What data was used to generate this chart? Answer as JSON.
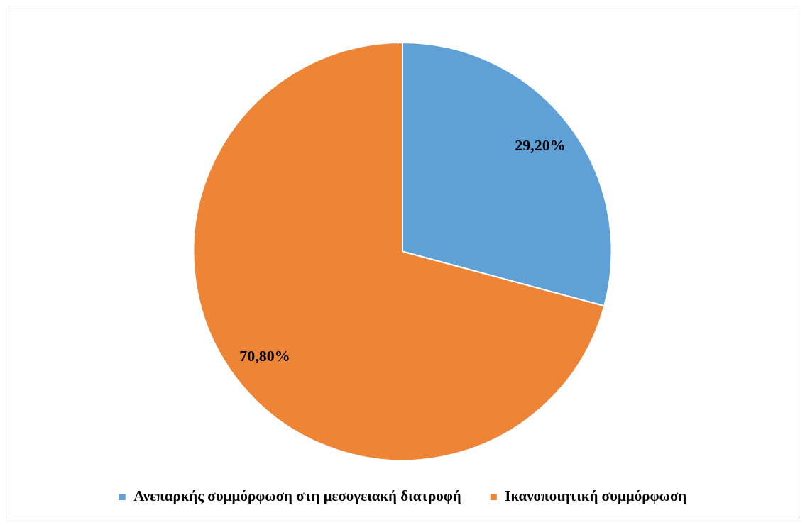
{
  "chart_data": {
    "type": "pie",
    "categories": [
      "Ανεπαρκής συμμόρφωση στη μεσογειακή διατροφή",
      "Ικανοποιητική συμμόρφωση"
    ],
    "values": [
      29.2,
      70.8
    ],
    "colors": [
      "#5fa0d7",
      "#ee8536"
    ],
    "value_labels": [
      "29,20%",
      "70,80%"
    ],
    "legend": "bottom"
  }
}
